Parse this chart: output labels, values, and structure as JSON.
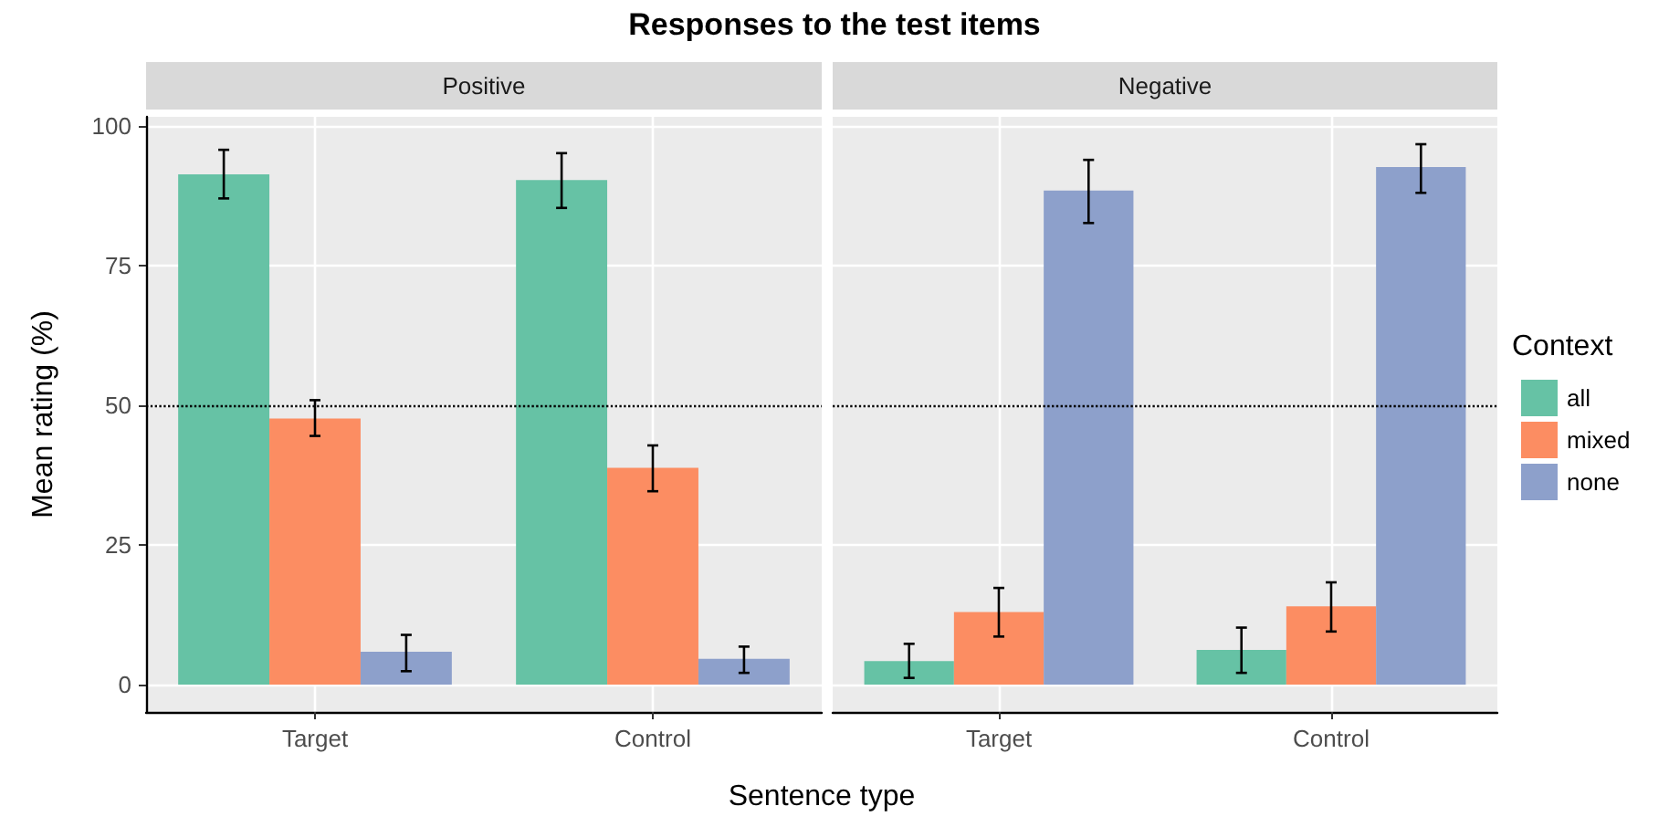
{
  "chart_data": [
    {
      "type": "bar",
      "title": "Responses to the test items",
      "subtitle": "Positive",
      "xlabel": "Sentence type",
      "ylabel": "Mean rating (%)",
      "categories": [
        "Target",
        "Control"
      ],
      "series": [
        {
          "color": "#66c2a5",
          "values": [
            91.3,
            90.3
          ],
          "errors": [
            [
              87.0,
              95.7
            ],
            [
              85.3,
              95.1
            ]
          ]
        },
        {
          "color": "#fc8d62",
          "values": [
            47.6,
            38.8
          ],
          "errors": [
            [
              44.5,
              50.9
            ],
            [
              34.6,
              42.8
            ]
          ]
        },
        {
          "color": "#8da0cb",
          "values": [
            5.9,
            4.6
          ],
          "errors": [
            [
              2.4,
              8.9
            ],
            [
              2.1,
              6.8
            ]
          ]
        }
      ],
      "ylim": [
        -4.9,
        101.6
      ],
      "yticks": [
        0,
        25,
        50,
        75,
        100
      ],
      "grid": true,
      "legend": false,
      "ref_lines": [
        {
          "axis": "y",
          "value": 50,
          "line_style": "dotted",
          "color": "#000000"
        }
      ]
    },
    {
      "type": "bar",
      "subtitle": "Negative",
      "legend_title": "Context",
      "categories": [
        "Target",
        "Control"
      ],
      "series": [
        {
          "name": "all",
          "color": "#66c2a5",
          "values": [
            4.2,
            6.2
          ],
          "errors": [
            [
              1.2,
              7.3
            ],
            [
              2.1,
              10.2
            ]
          ]
        },
        {
          "name": "mixed",
          "color": "#fc8d62",
          "values": [
            13.0,
            14.0
          ],
          "errors": [
            [
              8.6,
              17.3
            ],
            [
              9.5,
              18.3
            ]
          ]
        },
        {
          "name": "none",
          "color": "#8da0cb",
          "values": [
            88.4,
            92.6
          ],
          "errors": [
            [
              82.6,
              93.9
            ],
            [
              88.0,
              96.7
            ]
          ]
        }
      ],
      "ylim": [
        -4.9,
        101.6
      ],
      "yticks": [
        0,
        25,
        50,
        75,
        100
      ],
      "grid": true,
      "legend": "right",
      "tick_labels": "x",
      "ref_lines": [
        {
          "axis": "y",
          "value": 50,
          "line_style": "dotted",
          "color": "#000000"
        }
      ]
    }
  ]
}
